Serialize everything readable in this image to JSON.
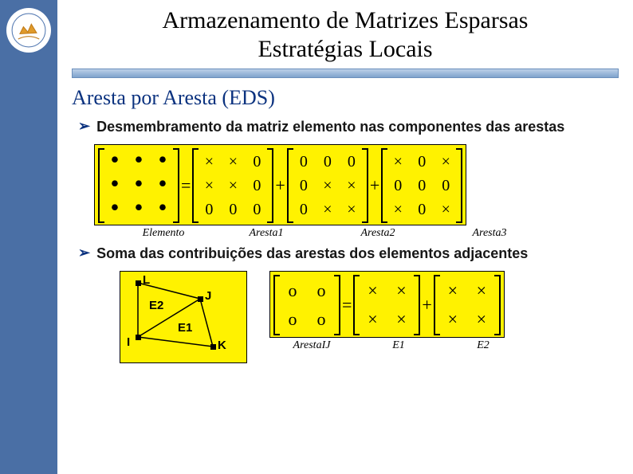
{
  "header": {
    "title_line1": "Armazenamento de Matrizes Esparsas",
    "title_line2": "Estratégias Locais"
  },
  "subtitle": "Aresta por Aresta (EDS)",
  "bullets": {
    "b1": "Desmembramento da matriz elemento nas componentes das arestas",
    "b2": "Soma das contribuições das arestas dos elementos adjacentes"
  },
  "eq1": {
    "M_elem": {
      "rows": [
        [
          "•",
          "•",
          "•"
        ],
        [
          "•",
          "•",
          "•"
        ],
        [
          "•",
          "•",
          "•"
        ]
      ]
    },
    "M_a1": {
      "rows": [
        [
          "×",
          "×",
          "0"
        ],
        [
          "×",
          "×",
          "0"
        ],
        [
          "0",
          "0",
          "0"
        ]
      ]
    },
    "M_a2": {
      "rows": [
        [
          "0",
          "0",
          "0"
        ],
        [
          "0",
          "×",
          "×"
        ],
        [
          "0",
          "×",
          "×"
        ]
      ]
    },
    "M_a3": {
      "rows": [
        [
          "×",
          "0",
          "×"
        ],
        [
          "0",
          "0",
          "0"
        ],
        [
          "×",
          "0",
          "×"
        ]
      ]
    },
    "labels": {
      "elem": "Elemento",
      "a1": "Aresta1",
      "a2": "Aresta2",
      "a3": "Aresta3"
    }
  },
  "diagram": {
    "nodes": {
      "L": "L",
      "J": "J",
      "I": "I",
      "K": "K"
    },
    "elements": {
      "E1": "E1",
      "E2": "E2"
    }
  },
  "eq2": {
    "M_aIJ": {
      "rows": [
        [
          "o",
          "o"
        ],
        [
          "o",
          "o"
        ]
      ]
    },
    "M_e1": {
      "rows": [
        [
          "×",
          "×"
        ],
        [
          "×",
          "×"
        ]
      ]
    },
    "M_e2": {
      "rows": [
        [
          "×",
          "×"
        ],
        [
          "×",
          "×"
        ]
      ]
    },
    "labels": {
      "aIJ": "ArestaIJ",
      "e1": "E1",
      "e2": "E2"
    }
  },
  "style": {
    "sidebar_color": "#4a6fa5",
    "highlight_bg": "#fff200",
    "accent_color": "#0b327f",
    "title_fontsize": 30,
    "subtitle_fontsize": 26,
    "bullet_fontsize": 18
  }
}
